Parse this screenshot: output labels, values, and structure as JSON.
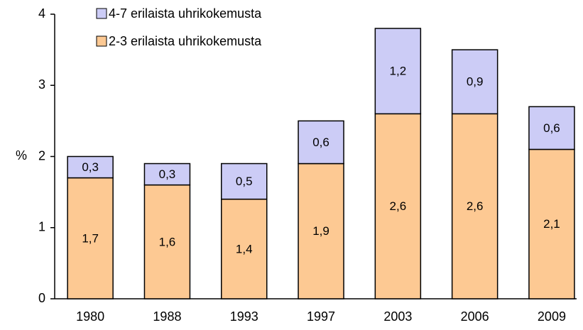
{
  "chart_data": {
    "type": "stacked-bar",
    "y_label": "%",
    "categories": [
      "1980",
      "1988",
      "1993",
      "1997",
      "2003",
      "2006",
      "2009"
    ],
    "series": [
      {
        "name": "2-3 erilaista uhrikokemusta",
        "color": "#fdc993",
        "values": [
          1.7,
          1.6,
          1.4,
          1.9,
          2.6,
          2.6,
          2.1
        ],
        "value_labels": [
          "1,7",
          "1,6",
          "1,4",
          "1,9",
          "2,6",
          "2,6",
          "2,1"
        ]
      },
      {
        "name": "4-7 erilaista uhrikokemusta",
        "color": "#ccccf6",
        "values": [
          0.3,
          0.3,
          0.5,
          0.6,
          1.2,
          0.9,
          0.6
        ],
        "value_labels": [
          "0,3",
          "0,3",
          "0,5",
          "0,6",
          "1,2",
          "0,9",
          "0,6"
        ]
      }
    ],
    "ylim": [
      0,
      4
    ],
    "yticks": [
      0,
      1,
      2,
      3,
      4
    ],
    "grid": false,
    "legend": "top-left"
  }
}
